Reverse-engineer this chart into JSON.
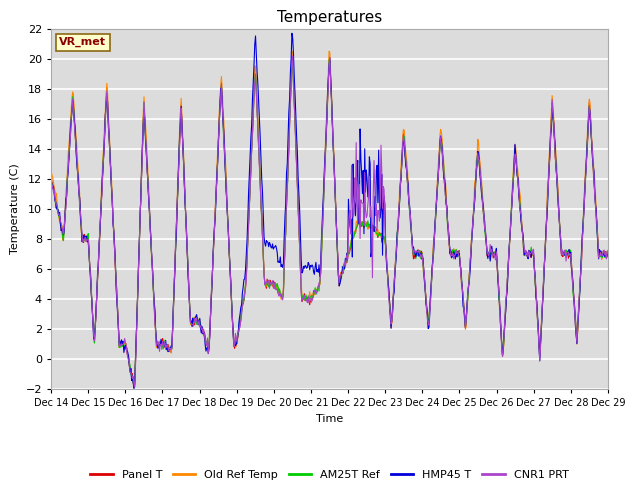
{
  "title": "Temperatures",
  "xlabel": "Time",
  "ylabel": "Temperature (C)",
  "ylim": [
    -2,
    22
  ],
  "xlim": [
    0,
    360
  ],
  "x_tick_labels": [
    "Dec 14",
    "Dec 15",
    "Dec 16",
    "Dec 17",
    "Dec 18",
    "Dec 19",
    "Dec 20",
    "Dec 21",
    "Dec 22",
    "Dec 23",
    "Dec 24",
    "Dec 25",
    "Dec 26",
    "Dec 27",
    "Dec 28",
    "Dec 29"
  ],
  "x_tick_positions": [
    0,
    24,
    48,
    72,
    96,
    120,
    144,
    168,
    192,
    216,
    240,
    264,
    288,
    312,
    336,
    360
  ],
  "series_colors": {
    "Panel T": "#dd0000",
    "Old Ref Temp": "#ff8800",
    "AM25T Ref": "#00cc00",
    "HMP45 T": "#0000dd",
    "CNR1 PRT": "#aa44cc"
  },
  "legend_entries": [
    "Panel T",
    "Old Ref Temp",
    "AM25T Ref",
    "HMP45 T",
    "CNR1 PRT"
  ],
  "annotation_label": "VR_met",
  "background_color": "#dcdcdc",
  "grid_color": "white",
  "title_fontsize": 11,
  "linewidth": 0.8
}
